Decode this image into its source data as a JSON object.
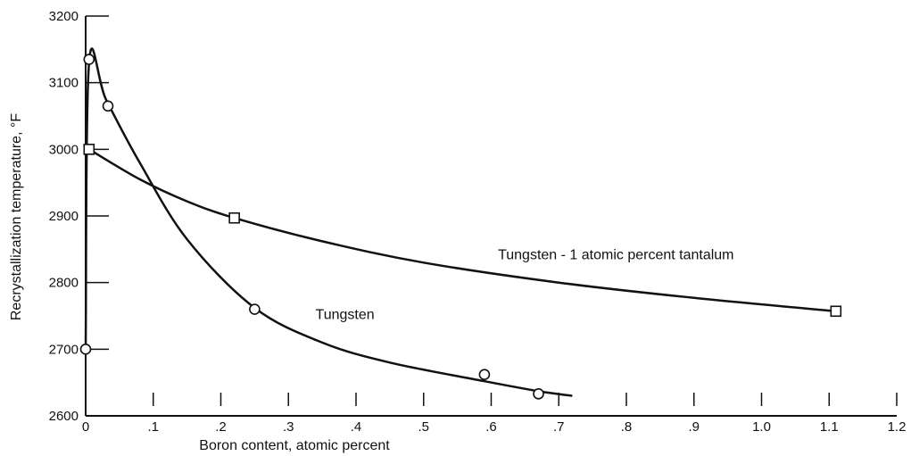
{
  "chart_data": {
    "type": "scatter",
    "xlabel": "Boron content, atomic percent",
    "ylabel": "Recrystallization temperature, °F",
    "xlim": [
      0,
      1.2
    ],
    "ylim": [
      2600,
      3200
    ],
    "x_ticks": [
      0,
      0.1,
      0.2,
      0.3,
      0.4,
      0.5,
      0.6,
      0.7,
      0.8,
      0.9,
      1.0,
      1.1,
      1.2
    ],
    "x_tick_labels": [
      "0",
      ".1",
      ".2",
      ".3",
      ".4",
      ".5",
      ".6",
      ".7",
      ".8",
      ".9",
      "1.0",
      "1.1",
      "1.2"
    ],
    "y_ticks": [
      2600,
      2700,
      2800,
      2900,
      3000,
      3100,
      3200
    ],
    "y_tick_labels": [
      "2600",
      "2700",
      "2800",
      "2900",
      "3000",
      "3100",
      "3200"
    ],
    "grid": false,
    "series": [
      {
        "label": "Tungsten",
        "marker": "circle",
        "points": [
          [
            0.0,
            2700
          ],
          [
            0.005,
            3135
          ],
          [
            0.033,
            3065
          ],
          [
            0.25,
            2760
          ],
          [
            0.59,
            2662
          ],
          [
            0.67,
            2633
          ]
        ],
        "curve": [
          [
            0.0,
            2700
          ],
          [
            0.005,
            3130
          ],
          [
            0.03,
            3075
          ],
          [
            0.08,
            2980
          ],
          [
            0.15,
            2865
          ],
          [
            0.25,
            2762
          ],
          [
            0.35,
            2710
          ],
          [
            0.45,
            2680
          ],
          [
            0.59,
            2652
          ],
          [
            0.67,
            2637
          ],
          [
            0.72,
            2630
          ]
        ]
      },
      {
        "label": "Tungsten - 1 atomic percent tantalum",
        "marker": "square",
        "points": [
          [
            0.005,
            3000
          ],
          [
            0.22,
            2897
          ],
          [
            1.11,
            2757
          ]
        ],
        "curve": [
          [
            0.005,
            3000
          ],
          [
            0.08,
            2955
          ],
          [
            0.15,
            2922
          ],
          [
            0.22,
            2897
          ],
          [
            0.35,
            2862
          ],
          [
            0.5,
            2830
          ],
          [
            0.7,
            2800
          ],
          [
            0.9,
            2777
          ],
          [
            1.11,
            2757
          ]
        ]
      }
    ],
    "annotations": [
      {
        "text": "Tungsten - 1 atomic percent tantalum",
        "x": 0.61,
        "y": 2835
      },
      {
        "text": "Tungsten",
        "x": 0.34,
        "y": 2745
      }
    ]
  }
}
